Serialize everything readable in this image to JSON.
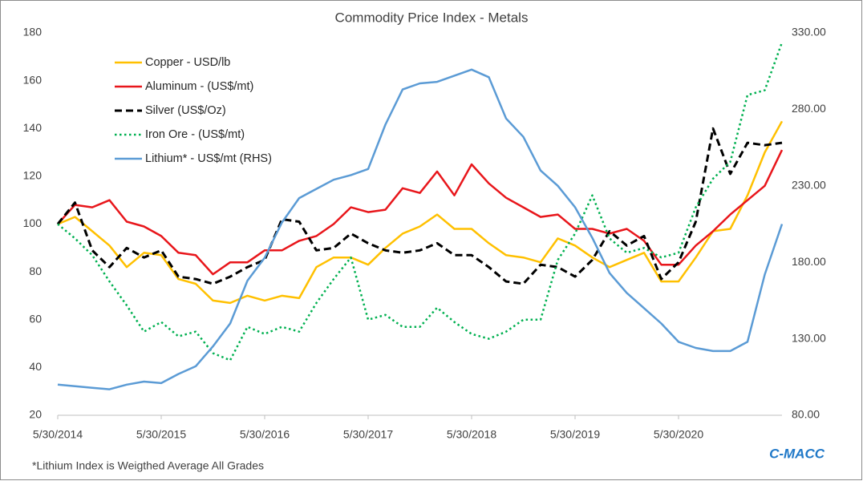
{
  "chart_data": {
    "type": "line",
    "title": "Commodity Price Index - Metals",
    "footnote": "*Lithium Index is Weigthed Average All Grades",
    "source": "C-MACC",
    "categories": [
      "5/30/2014",
      null,
      null,
      null,
      null,
      null,
      "5/30/2015",
      null,
      null,
      null,
      null,
      null,
      "5/30/2016",
      null,
      null,
      null,
      null,
      null,
      "5/30/2017",
      null,
      null,
      null,
      null,
      null,
      "5/30/2018",
      null,
      null,
      null,
      null,
      null,
      "5/30/2019",
      null,
      null,
      null,
      null,
      null,
      "5/30/2020",
      null,
      null,
      null,
      null,
      null,
      null
    ],
    "ylim": [
      20,
      180
    ],
    "yticks": [
      20,
      40,
      60,
      80,
      100,
      120,
      140,
      160,
      180
    ],
    "y2lim": [
      80,
      330
    ],
    "y2ticks": [
      {
        "value": 80,
        "label": "80.00"
      },
      {
        "value": 130,
        "label": "130.00"
      },
      {
        "value": 180,
        "label": "180.00"
      },
      {
        "value": 230,
        "label": "230.00"
      },
      {
        "value": 280,
        "label": "280.00"
      },
      {
        "value": 330,
        "label": "330.00"
      }
    ],
    "grid": false,
    "legend": "upper left",
    "series": [
      {
        "name": "Copper - USD/lb",
        "color": "#ffc000",
        "dash": "solid",
        "values": [
          100,
          103,
          97,
          91,
          82,
          88,
          87,
          77,
          75,
          68,
          67,
          70,
          68,
          70,
          69,
          82,
          86,
          86,
          83,
          90,
          96,
          99,
          104,
          98,
          98,
          92,
          87,
          86,
          84,
          94,
          91,
          86,
          82,
          85,
          88,
          76,
          76,
          86,
          97,
          98,
          112,
          130,
          143
        ]
      },
      {
        "name": "Aluminum - (US$/mt)",
        "color": "#e8161b",
        "dash": "solid",
        "values": [
          100,
          108,
          107,
          110,
          101,
          99,
          95,
          88,
          87,
          79,
          84,
          84,
          89,
          89,
          93,
          95,
          100,
          107,
          105,
          106,
          115,
          113,
          122,
          112,
          125,
          117,
          111,
          107,
          103,
          104,
          98,
          98,
          96,
          98,
          93,
          83,
          83,
          91,
          97,
          104,
          110,
          116,
          131
        ]
      },
      {
        "name": "Silver (US$/Oz)",
        "color": "#000000",
        "dash": "dashed",
        "values": [
          100,
          109,
          89,
          82,
          90,
          86,
          89,
          78,
          77,
          75,
          78,
          82,
          85,
          102,
          101,
          89,
          90,
          96,
          92,
          89,
          88,
          89,
          92,
          87,
          87,
          82,
          76,
          75,
          83,
          82,
          78,
          85,
          97,
          91,
          95,
          77,
          84,
          101,
          140,
          121,
          134,
          133,
          134
        ]
      },
      {
        "name": "Iron Ore - (US$/mt)",
        "color": "#00b050",
        "dash": "dotted",
        "values": [
          100,
          94,
          87,
          76,
          66,
          55,
          59,
          53,
          55,
          46,
          43,
          57,
          54,
          57,
          55,
          67,
          77,
          86,
          60,
          62,
          57,
          57,
          65,
          59,
          54,
          52,
          55,
          60,
          60,
          85,
          96,
          112,
          94,
          88,
          90,
          86,
          88,
          107,
          119,
          126,
          154,
          156,
          176
        ]
      },
      {
        "name": "Lithium* - US$/mt (RHS)",
        "color": "#5b9bd5",
        "dash": "solid",
        "axis": "y2",
        "values": [
          100,
          99,
          98,
          97,
          100,
          102,
          101,
          107,
          112,
          125,
          140,
          168,
          183,
          206,
          222,
          228,
          234,
          237,
          241,
          270,
          293,
          297,
          298,
          302,
          306,
          301,
          274,
          262,
          240,
          230,
          216,
          196,
          173,
          160,
          150,
          140,
          128,
          124,
          122,
          122,
          128,
          172,
          205
        ]
      }
    ]
  }
}
